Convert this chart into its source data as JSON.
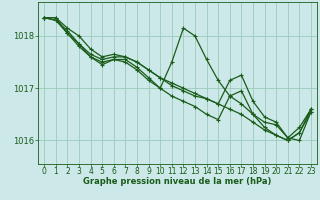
{
  "background_color": "#cce8e8",
  "grid_color": "#99ccbb",
  "line_color": "#1a5c1a",
  "marker_color": "#1a5c1a",
  "xlabel": "Graphe pression niveau de la mer (hPa)",
  "xlabel_color": "#1a5c1a",
  "xlabel_fontsize": 6.0,
  "tick_color": "#1a5c1a",
  "tick_fontsize": 5.5,
  "ytick_fontsize": 6.0,
  "ylim": [
    1015.55,
    1018.65
  ],
  "xlim": [
    -0.5,
    23.5
  ],
  "yticks": [
    1016,
    1017,
    1018
  ],
  "xticks": [
    0,
    1,
    2,
    3,
    4,
    5,
    6,
    7,
    8,
    9,
    10,
    11,
    12,
    13,
    14,
    15,
    16,
    17,
    18,
    19,
    20,
    21,
    22,
    23
  ],
  "series": [
    {
      "x": [
        0,
        1,
        2,
        3,
        4,
        5,
        6,
        7,
        8,
        9,
        10,
        11,
        12,
        13,
        14,
        15,
        16,
        17,
        18,
        19,
        20,
        21,
        22,
        23
      ],
      "y": [
        1018.35,
        1018.35,
        1018.15,
        1018.0,
        1017.75,
        1017.6,
        1017.65,
        1017.6,
        1017.5,
        1017.35,
        1017.2,
        1017.1,
        1017.0,
        1016.9,
        1016.8,
        1016.7,
        1016.6,
        1016.5,
        1016.35,
        1016.2,
        1016.1,
        1016.0,
        1016.15,
        1016.6
      ],
      "lw": 0.9
    },
    {
      "x": [
        0,
        1,
        2,
        3,
        4,
        5,
        6,
        7,
        8,
        9,
        10,
        11,
        12,
        13,
        14,
        15,
        16,
        17,
        18,
        19,
        20,
        21,
        22,
        23
      ],
      "y": [
        1018.35,
        1018.35,
        1018.05,
        1017.85,
        1017.6,
        1017.5,
        1017.55,
        1017.55,
        1017.4,
        1017.2,
        1017.0,
        1017.5,
        1018.15,
        1018.0,
        1017.55,
        1017.15,
        1016.85,
        1016.7,
        1016.5,
        1016.35,
        1016.3,
        1016.05,
        1016.25,
        1016.6
      ],
      "lw": 0.9
    },
    {
      "x": [
        0,
        1,
        2,
        3,
        4,
        5,
        6,
        7,
        8,
        9,
        10,
        11,
        12,
        13,
        14,
        15,
        16,
        17,
        18,
        19,
        20,
        21,
        22,
        23
      ],
      "y": [
        1018.35,
        1018.3,
        1018.05,
        1017.8,
        1017.6,
        1017.45,
        1017.55,
        1017.5,
        1017.35,
        1017.15,
        1017.0,
        1016.85,
        1016.75,
        1016.65,
        1016.5,
        1016.4,
        1016.85,
        1016.95,
        1016.5,
        1016.25,
        1016.1,
        1016.0,
        1016.15,
        1016.55
      ],
      "lw": 0.9
    },
    {
      "x": [
        0,
        1,
        2,
        3,
        4,
        5,
        6,
        7,
        8,
        9,
        10,
        11,
        12,
        13,
        14,
        15,
        16,
        17,
        18,
        19,
        20,
        21,
        22,
        23
      ],
      "y": [
        1018.35,
        1018.3,
        1018.1,
        1017.85,
        1017.65,
        1017.55,
        1017.6,
        1017.6,
        1017.5,
        1017.35,
        1017.2,
        1017.05,
        1016.95,
        1016.85,
        1016.8,
        1016.7,
        1017.15,
        1017.25,
        1016.75,
        1016.45,
        1016.35,
        1016.05,
        1016.0,
        1016.55
      ],
      "lw": 0.9
    }
  ]
}
